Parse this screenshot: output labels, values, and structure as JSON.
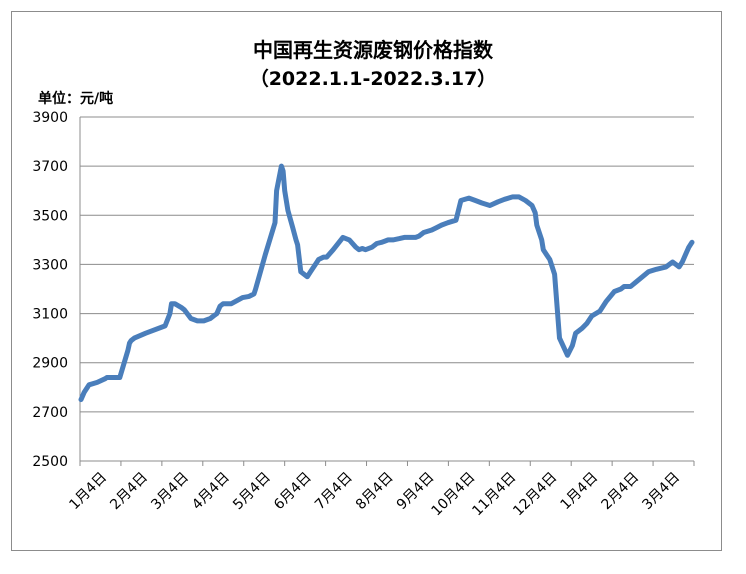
{
  "chart_data": {
    "type": "line",
    "title": "中国再生资源废钢价格指数",
    "subtitle": "（2022.1.1-2022.3.17）",
    "unit_label": "单位：元/吨",
    "ylim": [
      2500,
      3900
    ],
    "yticks": [
      2500,
      2700,
      2900,
      3100,
      3300,
      3500,
      3700,
      3900
    ],
    "grid": "horizontal",
    "legend": "none",
    "line_color": "#4a7ebb",
    "xticks": [
      "1月4日",
      "2月4日",
      "3月4日",
      "4月4日",
      "5月4日",
      "6月4日",
      "7月4日",
      "8月4日",
      "9月4日",
      "10月4日",
      "11月4日",
      "12月4日",
      "1月4日",
      "2月4日",
      "3月4日"
    ],
    "series": [
      {
        "x": [
          0,
          2,
          5,
          10,
          15,
          16,
          20,
          24,
          29,
          30,
          31,
          33,
          40,
          52,
          55,
          56,
          58,
          62,
          64,
          68,
          72,
          76,
          80,
          82,
          84,
          86,
          88,
          93,
          100,
          104,
          107,
          108,
          114,
          120,
          121,
          124,
          125,
          126,
          128,
          131,
          133,
          134,
          136,
          140,
          142,
          146,
          147,
          150,
          151,
          152,
          156,
          162,
          166,
          170,
          172,
          174,
          176,
          180,
          183,
          186,
          188,
          190,
          193,
          197,
          200,
          204,
          207,
          209,
          212,
          217,
          220,
          223,
          227,
          232,
          235,
          240,
          244,
          248,
          253,
          258,
          262,
          267,
          271,
          275,
          279,
          281,
          282,
          285,
          286,
          288,
          290,
          293,
          296,
          301,
          304,
          306,
          310,
          313,
          316,
          321,
          325,
          330,
          334,
          336,
          340,
          351,
          356,
          362,
          364,
          366,
          368,
          370,
          372,
          374,
          376,
          378
        ],
        "values": [
          2750,
          2780,
          2810,
          2820,
          2835,
          2840,
          2840,
          2840,
          2950,
          2980,
          2990,
          3000,
          3020,
          3050,
          3100,
          3140,
          3140,
          3125,
          3115,
          3080,
          3070,
          3070,
          3080,
          3090,
          3100,
          3130,
          3140,
          3140,
          3165,
          3170,
          3180,
          3200,
          3340,
          3470,
          3600,
          3700,
          3680,
          3600,
          3520,
          3450,
          3400,
          3380,
          3270,
          3250,
          3270,
          3310,
          3320,
          3330,
          3330,
          3330,
          3360,
          3410,
          3400,
          3370,
          3360,
          3365,
          3360,
          3370,
          3385,
          3390,
          3395,
          3400,
          3400,
          3405,
          3410,
          3410,
          3410,
          3415,
          3430,
          3440,
          3450,
          3460,
          3470,
          3480,
          3560,
          3570,
          3560,
          3550,
          3540,
          3555,
          3565,
          3575,
          3575,
          3560,
          3540,
          3510,
          3460,
          3400,
          3360,
          3340,
          3320,
          3260,
          3000,
          2930,
          2970,
          3020,
          3040,
          3060,
          3090,
          3110,
          3150,
          3190,
          3200,
          3210,
          3210,
          3270,
          3280,
          3290,
          3300,
          3310,
          3300,
          3290,
          3310,
          3340,
          3370,
          3390
        ]
      }
    ]
  }
}
